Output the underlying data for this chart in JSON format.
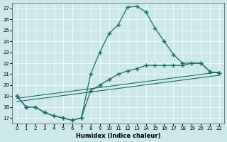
{
  "xlabel": "Humidex (Indice chaleur)",
  "bg_color": "#cce8e8",
  "line_color": "#1a6b6b",
  "xlim": [
    -0.5,
    22.5
  ],
  "ylim": [
    16.5,
    27.5
  ],
  "xticks": [
    0,
    1,
    2,
    3,
    4,
    5,
    6,
    7,
    8,
    9,
    10,
    11,
    12,
    13,
    14,
    15,
    16,
    17,
    18,
    19,
    20,
    21,
    22
  ],
  "yticks": [
    17,
    18,
    19,
    20,
    21,
    22,
    23,
    24,
    25,
    26,
    27
  ],
  "curve1_x": [
    0,
    1,
    2,
    3,
    4,
    5,
    6,
    7,
    8,
    9,
    10,
    11,
    12,
    13,
    14,
    15,
    16,
    17,
    18,
    19,
    20,
    21,
    22
  ],
  "curve1_y": [
    19.0,
    18.0,
    18.0,
    17.5,
    17.2,
    17.0,
    16.8,
    17.0,
    21.0,
    23.0,
    24.7,
    25.5,
    27.1,
    27.2,
    26.7,
    25.2,
    24.0,
    22.8,
    22.0,
    22.0,
    22.0,
    21.2,
    21.1
  ],
  "curve2_x": [
    0,
    1,
    2,
    3,
    4,
    5,
    6,
    7,
    8,
    9,
    10,
    11,
    12,
    13,
    14,
    15,
    16,
    17,
    18,
    19,
    20,
    21,
    22
  ],
  "curve2_y": [
    19.0,
    18.0,
    18.0,
    17.5,
    17.2,
    17.0,
    16.8,
    17.0,
    19.5,
    20.0,
    20.5,
    21.0,
    21.3,
    21.5,
    21.8,
    21.8,
    21.8,
    21.8,
    21.8,
    22.0,
    22.0,
    21.2,
    21.1
  ],
  "curve3_x": [
    0,
    22
  ],
  "curve3_y": [
    18.8,
    21.2
  ],
  "curve4_x": [
    0,
    22
  ],
  "curve4_y": [
    18.5,
    20.9
  ]
}
